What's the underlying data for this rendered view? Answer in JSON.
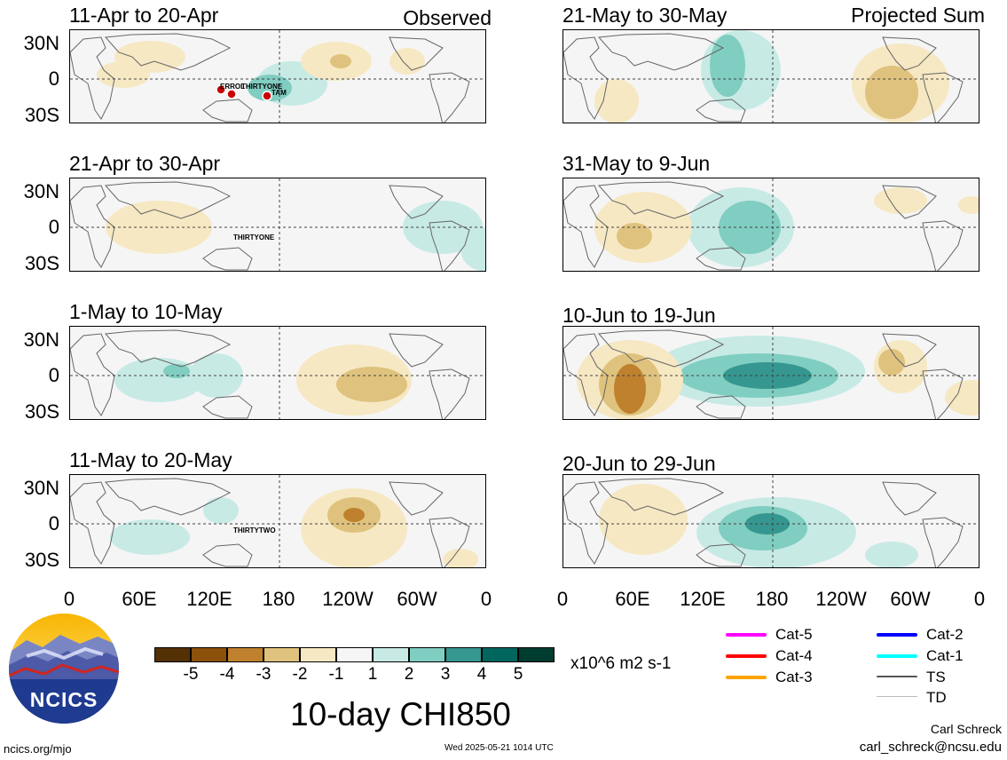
{
  "left_header": {
    "status": "Observed"
  },
  "right_header": {
    "status": "Projected Sum"
  },
  "panels_left": [
    {
      "period": "11-Apr to 20-Apr",
      "storms": [
        "ERROL",
        "THIRTYONE",
        "TAM"
      ]
    },
    {
      "period": "21-Apr to 30-Apr",
      "storms": [
        "THIRTYONE"
      ]
    },
    {
      "period": "1-May to 10-May",
      "storms": []
    },
    {
      "period": "11-May to 20-May",
      "storms": [
        "THIRTYTWO"
      ]
    }
  ],
  "panels_right": [
    {
      "period": "21-May to 30-May"
    },
    {
      "period": "31-May to 9-Jun"
    },
    {
      "period": "10-Jun to 19-Jun"
    },
    {
      "period": "20-Jun to 29-Jun"
    }
  ],
  "lat_labels": [
    "30N",
    "0",
    "30S"
  ],
  "lon_labels": [
    "0",
    "60E",
    "120E",
    "180",
    "120W",
    "60W",
    "0"
  ],
  "colorbar": {
    "ticks": [
      "-5",
      "-4",
      "-3",
      "-2",
      "-1",
      "1",
      "2",
      "3",
      "4",
      "5"
    ],
    "colors": [
      "#543005",
      "#8c510a",
      "#bf812d",
      "#dfc27d",
      "#f6e8c3",
      "#f5f5f5",
      "#c7eae5",
      "#80cdc1",
      "#35978f",
      "#01665e",
      "#003c30"
    ],
    "units": "x10^6 m2 s-1"
  },
  "title": "10-day CHI850",
  "logo": {
    "text": "NCICS"
  },
  "legend": [
    {
      "label": "Cat-5",
      "color": "#ff00ff"
    },
    {
      "label": "Cat-4",
      "color": "#ff0000"
    },
    {
      "label": "Cat-3",
      "color": "#ffa500"
    },
    {
      "label": "Cat-2",
      "color": "#0000ff"
    },
    {
      "label": "Cat-1",
      "color": "#00ffff"
    },
    {
      "label": "TS",
      "color": "#555555"
    },
    {
      "label": "TD",
      "color": "#bbbbbb"
    }
  ],
  "footer": {
    "url": "ncics.org/mjo",
    "timestamp": "Wed 2025-05-21 1014 UTC",
    "author": "Carl Schreck",
    "email": "carl_schreck@ncsu.edu"
  }
}
